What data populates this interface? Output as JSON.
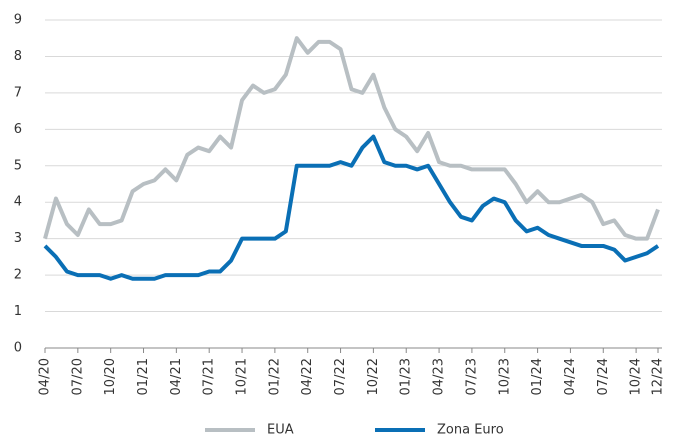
{
  "chart_data": {
    "type": "line",
    "categories": [
      "04/20",
      null,
      null,
      "07/20",
      null,
      null,
      "10/20",
      null,
      null,
      "01/21",
      null,
      null,
      "04/21",
      null,
      null,
      "07/21",
      null,
      null,
      "10/21",
      null,
      null,
      "01/22",
      null,
      null,
      "04/22",
      null,
      null,
      "07/22",
      null,
      null,
      "10/22",
      null,
      null,
      "01/23",
      null,
      null,
      "04/23",
      null,
      null,
      "07/23",
      null,
      null,
      "10/23",
      null,
      null,
      "01/24",
      null,
      null,
      "04/24",
      null,
      null,
      "07/24",
      null,
      null,
      "10/24",
      null,
      "12/24"
    ],
    "series": [
      {
        "name": "EUA",
        "color": "#b8bfc3",
        "values": [
          3.0,
          4.1,
          3.4,
          3.1,
          3.8,
          3.4,
          3.4,
          3.5,
          4.3,
          4.5,
          4.6,
          4.9,
          4.6,
          5.3,
          5.5,
          5.4,
          5.8,
          5.5,
          6.8,
          7.2,
          7.0,
          7.1,
          7.5,
          8.5,
          8.1,
          8.4,
          8.4,
          8.2,
          7.1,
          7.0,
          7.5,
          6.6,
          6.0,
          5.8,
          5.4,
          5.9,
          5.1,
          5.0,
          5.0,
          4.9,
          4.9,
          4.9,
          4.9,
          4.5,
          4.0,
          4.3,
          4.0,
          4.0,
          4.1,
          4.2,
          4.0,
          3.4,
          3.5,
          3.1,
          3.0,
          3.0,
          3.8
        ]
      },
      {
        "name": "Zona Euro",
        "color": "#0a6fb5",
        "values": [
          2.8,
          2.5,
          2.1,
          2.0,
          2.0,
          2.0,
          1.9,
          2.0,
          1.9,
          1.9,
          1.9,
          2.0,
          2.0,
          2.0,
          2.0,
          2.1,
          2.1,
          2.4,
          3.0,
          3.0,
          3.0,
          3.0,
          3.2,
          5.0,
          5.0,
          5.0,
          5.0,
          5.1,
          5.0,
          5.5,
          5.8,
          5.1,
          5.0,
          5.0,
          4.9,
          5.0,
          4.5,
          4.0,
          3.6,
          3.5,
          3.9,
          4.1,
          4.0,
          3.5,
          3.2,
          3.3,
          3.1,
          3.0,
          2.9,
          2.8,
          2.8,
          2.8,
          2.7,
          2.4,
          2.5,
          2.6,
          2.8
        ]
      }
    ],
    "ylim": [
      0,
      9
    ],
    "yticks": [
      0,
      1,
      2,
      3,
      4,
      5,
      6,
      7,
      8,
      9
    ],
    "grid": true,
    "legend": "bottom"
  }
}
